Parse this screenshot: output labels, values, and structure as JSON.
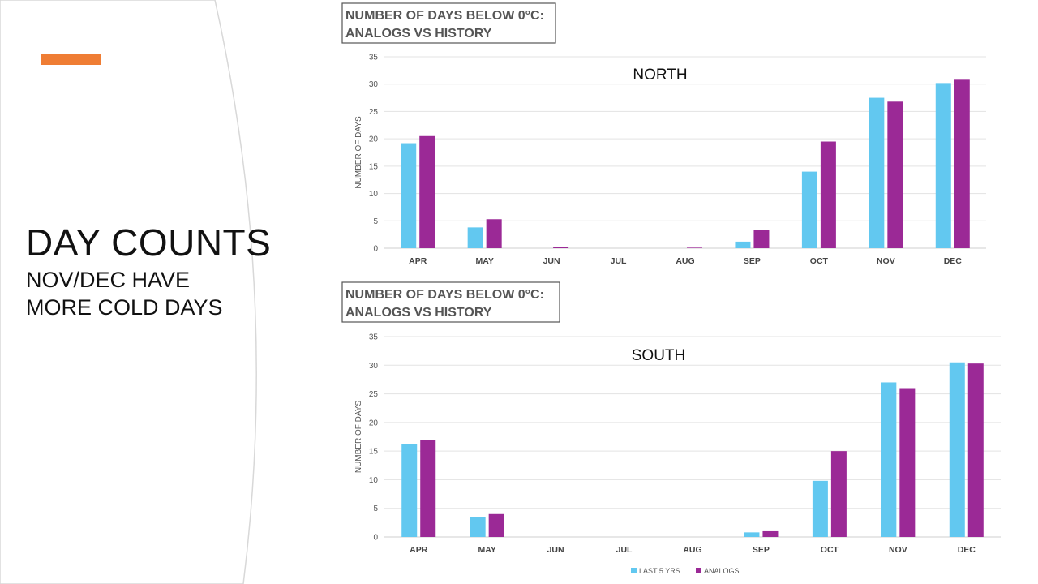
{
  "slide": {
    "title": "DAY COUNTS",
    "subtitle_line1": "NOV/DEC HAVE",
    "subtitle_line2": "MORE COLD DAYS"
  },
  "colors": {
    "accent": "#ef7d34",
    "series_last5": "#62c8f0",
    "series_analogs": "#9b2996",
    "grid": "#e3e3e3",
    "text": "#555555"
  },
  "chart_data": [
    {
      "type": "bar",
      "title_line1": "NUMBER OF DAYS BELOW 0°C:",
      "title_line2": "ANALOGS VS HISTORY",
      "inner_label": "NORTH",
      "categories": [
        "APR",
        "MAY",
        "JUN",
        "JUL",
        "AUG",
        "SEP",
        "OCT",
        "NOV",
        "DEC"
      ],
      "series": [
        {
          "name": "LAST 5 YRS",
          "values": [
            19.2,
            3.8,
            0,
            0,
            0,
            1.2,
            14,
            27.5,
            30.2
          ]
        },
        {
          "name": "ANALOGS",
          "values": [
            20.5,
            5.3,
            0.2,
            0,
            0.1,
            3.4,
            19.5,
            26.8,
            30.8
          ]
        }
      ],
      "ylabel": "NUMBER OF DAYS",
      "yticks": [
        0,
        5,
        10,
        15,
        20,
        25,
        30,
        35
      ],
      "ylim": [
        0,
        35
      ],
      "grid": true
    },
    {
      "type": "bar",
      "title_line1": "NUMBER OF DAYS BELOW 0°C:",
      "title_line2": "ANALOGS VS HISTORY",
      "inner_label": "SOUTH",
      "categories": [
        "APR",
        "MAY",
        "JUN",
        "JUL",
        "AUG",
        "SEP",
        "OCT",
        "NOV",
        "DEC"
      ],
      "series": [
        {
          "name": "LAST 5 YRS",
          "values": [
            16.2,
            3.5,
            0,
            0,
            0,
            0.8,
            9.8,
            27,
            30.5
          ]
        },
        {
          "name": "ANALOGS",
          "values": [
            17,
            4,
            0,
            0,
            0,
            1,
            15,
            26,
            30.3
          ]
        }
      ],
      "ylabel": "NUMBER OF DAYS",
      "yticks": [
        0,
        5,
        10,
        15,
        20,
        25,
        30,
        35
      ],
      "ylim": [
        0,
        35
      ],
      "grid": true,
      "legend": [
        "LAST 5 YRS",
        "ANALOGS"
      ],
      "legend_position": "bottom-center"
    }
  ]
}
